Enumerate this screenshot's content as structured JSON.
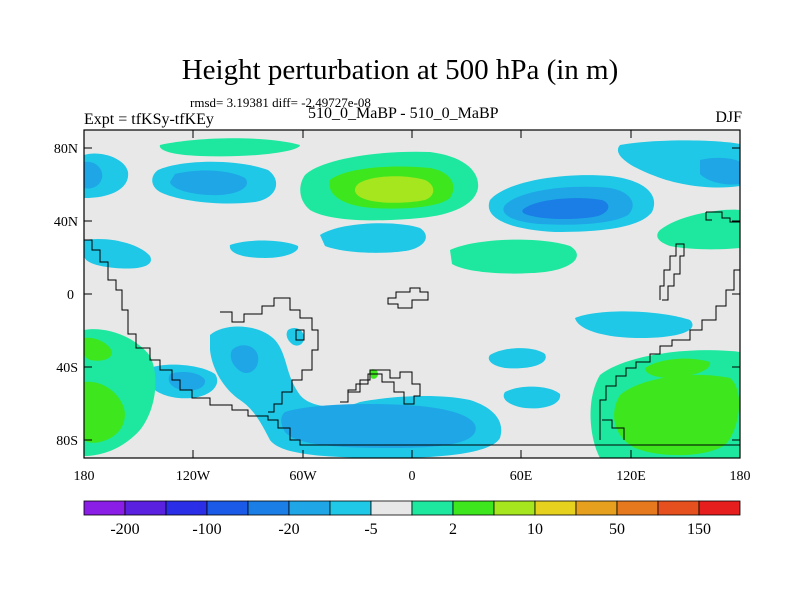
{
  "header": {
    "title": "Height perturbation at 500 hPa (in m)",
    "stats": "rmsd= 3.19381 diff= -2.49727e-08",
    "left_label": "Expt = tfKSy-tfKEy",
    "center_label": "510_0_MaBP - 510_0_MaBP",
    "right_label": "DJF"
  },
  "axes": {
    "y_ticks": [
      "80N",
      "40N",
      "0",
      "40S",
      "80S"
    ],
    "x_ticks": [
      "180",
      "120W",
      "60W",
      "0",
      "60E",
      "120E",
      "180"
    ]
  },
  "colorbar": {
    "colors": [
      "#8a1ee6",
      "#5a22e0",
      "#2a2ee6",
      "#1a5ae6",
      "#1a7ee6",
      "#1ea6e6",
      "#1ec8e6",
      "#e8e8e8",
      "#1ee8a0",
      "#3ee61e",
      "#a6e61e",
      "#e6d21e",
      "#e6a01e",
      "#e6781e",
      "#e6501e",
      "#e61e1e"
    ],
    "labels": [
      "-200",
      "-100",
      "-20",
      "-5",
      "2",
      "10",
      "50",
      "150"
    ]
  }
}
